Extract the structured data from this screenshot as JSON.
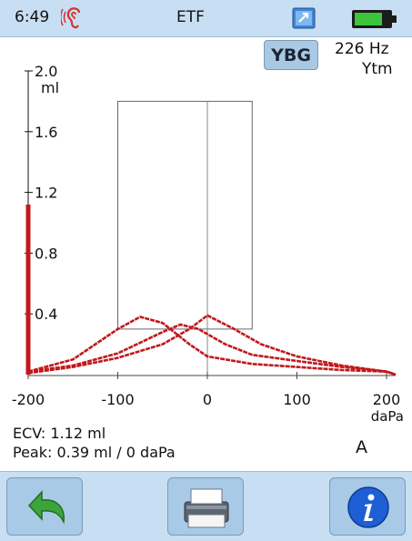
{
  "status_bar": {
    "time": "6:49",
    "title": "ETF",
    "icons": [
      "ear-icon",
      "window-restore-icon",
      "battery-icon"
    ]
  },
  "probe_button": {
    "label": "YBG"
  },
  "probe_info": {
    "frequency": "226 Hz",
    "mode": "Ytm"
  },
  "measurements": {
    "ecv": "ECV: 1.12 ml",
    "peak": "Peak: 0.39 ml / 0 daPa",
    "ear_side": "A"
  },
  "bottom_bar": {
    "buttons": [
      "back-arrow-icon",
      "printer-icon",
      "info-icon"
    ]
  },
  "colors": {
    "curve": "#c0181c",
    "bar_background": "#c8def2",
    "button_face": "#a9cae6",
    "info_blue": "#1f5fd6",
    "back_green": "#3ca43c"
  },
  "chart_data": {
    "type": "line",
    "xlabel": "daPa",
    "ylabel": "ml",
    "xlim": [
      -200,
      210
    ],
    "ylim": [
      0,
      2.0
    ],
    "x_ticks": [
      "-200",
      "-100",
      "0",
      "100",
      "200"
    ],
    "y_ticks": [
      "0.4",
      "0.8",
      "1.2",
      "1.6",
      "2.0"
    ],
    "ecv_bar_value": 1.12,
    "pass_region": {
      "x": [
        -100,
        50
      ],
      "y": [
        0.3,
        1.8
      ]
    },
    "series": [
      {
        "x": [
          -200,
          -150,
          -100,
          -75,
          -50,
          -20,
          0,
          50,
          100,
          150,
          200,
          210
        ],
        "y": [
          0.02,
          0.1,
          0.3,
          0.38,
          0.34,
          0.2,
          0.12,
          0.07,
          0.05,
          0.03,
          0.02,
          0.0
        ]
      },
      {
        "x": [
          -200,
          -150,
          -100,
          -50,
          -30,
          -10,
          20,
          50,
          100,
          150,
          200,
          210
        ],
        "y": [
          0.02,
          0.06,
          0.14,
          0.28,
          0.33,
          0.3,
          0.2,
          0.13,
          0.09,
          0.05,
          0.02,
          0.0
        ]
      },
      {
        "x": [
          -200,
          -150,
          -100,
          -50,
          -20,
          0,
          30,
          60,
          100,
          150,
          200,
          210
        ],
        "y": [
          0.01,
          0.05,
          0.11,
          0.2,
          0.3,
          0.39,
          0.3,
          0.2,
          0.12,
          0.06,
          0.02,
          0.0
        ]
      }
    ]
  }
}
